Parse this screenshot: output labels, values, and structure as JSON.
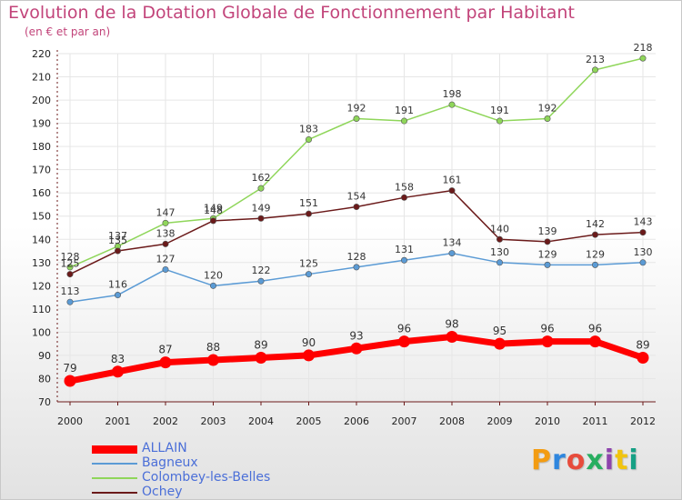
{
  "header": {
    "title": "Evolution de la Dotation Globale de Fonctionnement par Habitant",
    "subtitle": "(en € et par an)"
  },
  "logo": {
    "text": "Proxiti"
  },
  "colors": {
    "accent": "#c2447a",
    "allain": "#ff0000",
    "bagneux": "#5b9bd5",
    "colombey": "#8fd65a",
    "ochey": "#6b1a1a",
    "axis": "#6b1a1a",
    "grid": "#e6e6e6"
  },
  "chart_data": {
    "type": "line",
    "title": "Evolution de la Dotation Globale de Fonctionnement par Habitant",
    "subtitle": "(en € et par an)",
    "x": [
      "2000",
      "2001",
      "2002",
      "2003",
      "2004",
      "2005",
      "2006",
      "2007",
      "2008",
      "2009",
      "2010",
      "2011",
      "2012"
    ],
    "ylim": [
      70,
      220
    ],
    "yticks": [
      70,
      80,
      90,
      100,
      110,
      120,
      130,
      140,
      150,
      160,
      170,
      180,
      190,
      200,
      210,
      220
    ],
    "grid": true,
    "legend_position": "bottom-left",
    "series": [
      {
        "name": "ALLAIN",
        "color": "#ff0000",
        "values": [
          79,
          83,
          87,
          88,
          89,
          90,
          93,
          96,
          98,
          95,
          96,
          96,
          89
        ]
      },
      {
        "name": "Bagneux",
        "color": "#5b9bd5",
        "values": [
          113,
          116,
          127,
          120,
          122,
          125,
          128,
          131,
          134,
          130,
          129,
          129,
          130
        ]
      },
      {
        "name": "Colombey-les-Belles",
        "color": "#8fd65a",
        "values": [
          128,
          137,
          147,
          149,
          162,
          183,
          192,
          191,
          198,
          191,
          192,
          213,
          218
        ]
      },
      {
        "name": "Ochey",
        "color": "#6b1a1a",
        "values": [
          125,
          135,
          138,
          148,
          149,
          151,
          154,
          158,
          161,
          140,
          139,
          142,
          143
        ]
      }
    ]
  }
}
